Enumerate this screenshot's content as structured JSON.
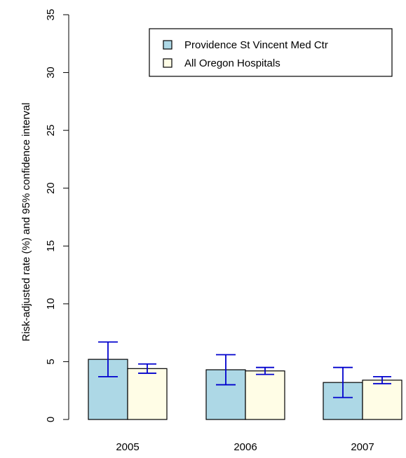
{
  "chart_data": {
    "type": "bar",
    "ylabel": "Risk-adjusted rate (%) and 95% confidence interval",
    "ylim": [
      0,
      35
    ],
    "yticks": [
      "0",
      "5",
      "10",
      "15",
      "20",
      "25",
      "30",
      "35"
    ],
    "categories": [
      "2005",
      "2006",
      "2007"
    ],
    "series": [
      {
        "name": "Providence St Vincent Med Ctr",
        "color": "#add8e6",
        "values": [
          5.2,
          4.3,
          3.2
        ],
        "ci_low": [
          3.7,
          3.0,
          1.9
        ],
        "ci_high": [
          6.7,
          5.6,
          4.5
        ]
      },
      {
        "name": "All Oregon Hospitals",
        "color": "#fffde6",
        "values": [
          4.4,
          4.2,
          3.4
        ],
        "ci_low": [
          4.0,
          3.9,
          3.1
        ],
        "ci_high": [
          4.8,
          4.5,
          3.7
        ]
      }
    ],
    "errorbar_color": "#0000cd",
    "legend_position": "top-right",
    "grid": false
  }
}
